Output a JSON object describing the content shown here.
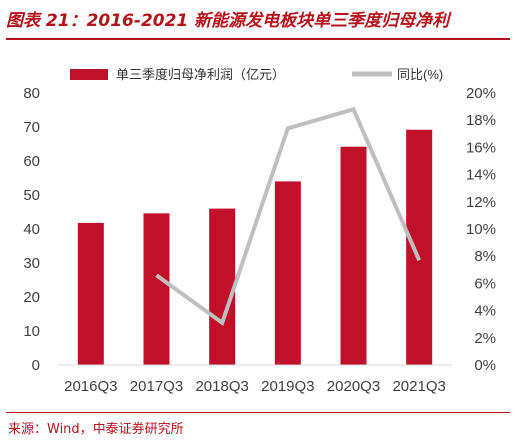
{
  "header": {
    "title": "图表 21：2016-2021 新能源发电板块单三季度归母净利"
  },
  "footer": {
    "source": "来源：Wind，中泰证券研究所"
  },
  "colors": {
    "bar": "#c0102a",
    "line": "#bfbfbf",
    "title": "#b5121b",
    "axis_text": "#404040"
  },
  "chart_data": {
    "type": "bar",
    "categories": [
      "2016Q3",
      "2017Q3",
      "2018Q3",
      "2019Q3",
      "2020Q3",
      "2021Q3"
    ],
    "series": [
      {
        "name": "单三季度归母净利润（亿元）",
        "type": "bar",
        "axis": "left",
        "values": [
          41.8,
          44.6,
          46.0,
          54.0,
          64.2,
          69.2
        ]
      },
      {
        "name": "同比(%)",
        "type": "line",
        "axis": "right",
        "values": [
          null,
          6.6,
          3.1,
          17.4,
          18.8,
          7.7
        ]
      }
    ],
    "ylim_left": [
      0,
      80
    ],
    "yticks_left": [
      "0",
      "10",
      "20",
      "30",
      "40",
      "50",
      "60",
      "70",
      "80"
    ],
    "ylim_right": [
      0,
      20
    ],
    "yticks_right": [
      "0%",
      "2%",
      "4%",
      "6%",
      "8%",
      "10%",
      "12%",
      "14%",
      "16%",
      "18%",
      "20%"
    ],
    "legend_position": "top",
    "grid": false
  }
}
